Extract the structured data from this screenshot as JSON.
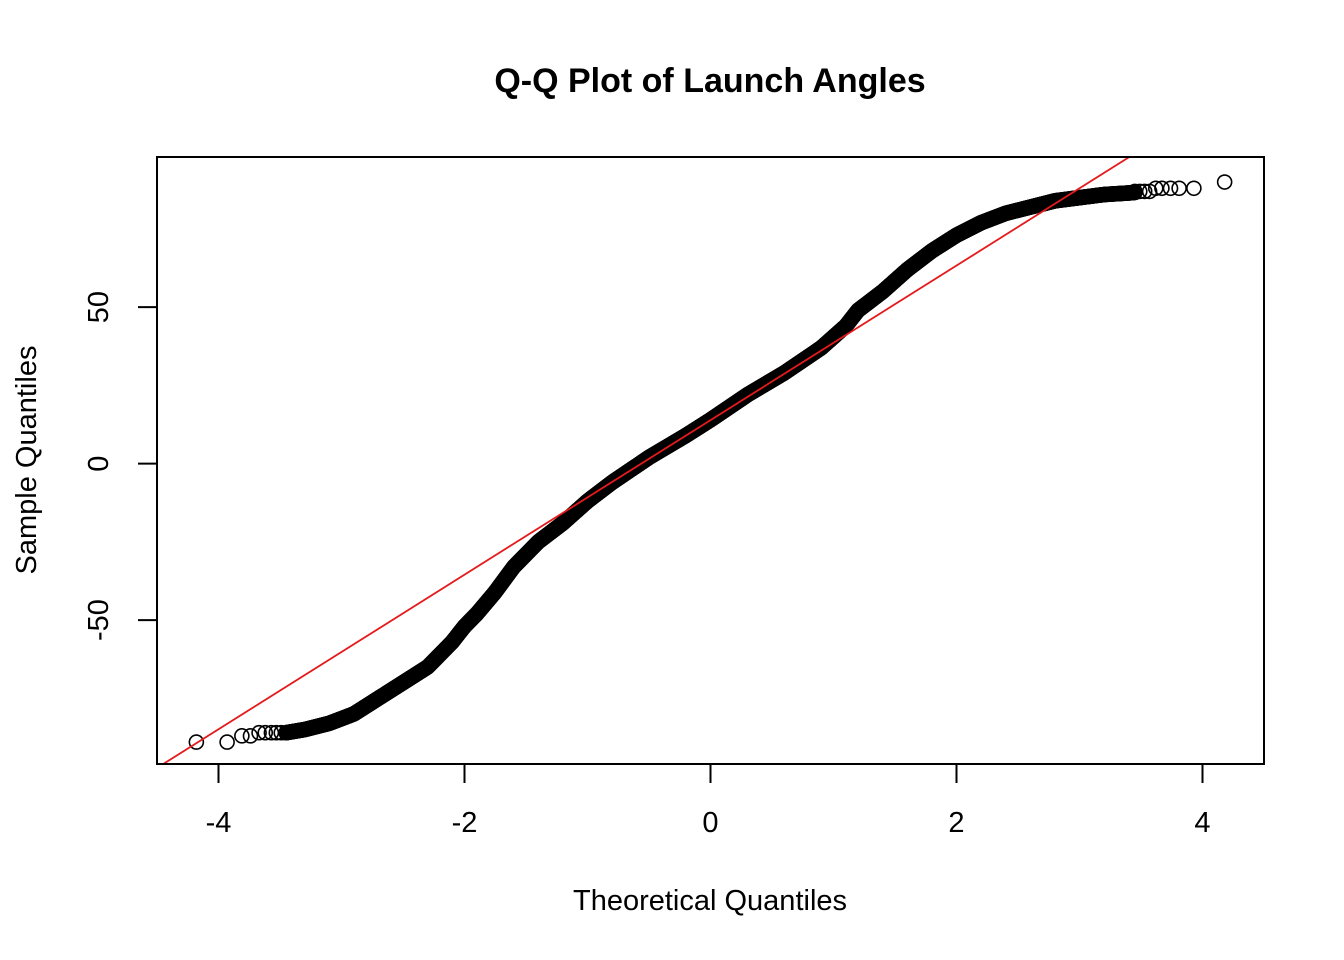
{
  "chart_data": {
    "type": "scatter",
    "title": "Q-Q Plot of Launch Angles",
    "xlabel": "Theoretical Quantiles",
    "ylabel": "Sample Quantiles",
    "xlim": [
      -4.5,
      4.5
    ],
    "ylim": [
      -96,
      98
    ],
    "x_ticks": [
      -4,
      -2,
      0,
      2,
      4
    ],
    "x_tick_labels": [
      "-4",
      "-2",
      "0",
      "2",
      "4"
    ],
    "y_ticks": [
      -50,
      0,
      50
    ],
    "y_tick_labels": [
      "-50",
      "0",
      "50"
    ],
    "grid": false,
    "legend": "none",
    "reference_line": {
      "intercept": 13.9,
      "slope": 24.7,
      "color": "#e41a1c"
    },
    "point_color": "#000000",
    "series": [
      {
        "quantile_curve": [
          [
            -4.18,
            -89
          ],
          [
            -3.93,
            -89
          ],
          [
            -3.78,
            -87
          ],
          [
            -3.7,
            -87
          ],
          [
            -3.6,
            -86
          ],
          [
            -3.45,
            -86
          ],
          [
            -3.3,
            -85
          ],
          [
            -3.1,
            -83
          ],
          [
            -2.9,
            -80
          ],
          [
            -2.7,
            -75
          ],
          [
            -2.5,
            -70
          ],
          [
            -2.3,
            -65
          ],
          [
            -2.1,
            -57
          ],
          [
            -2.0,
            -52
          ],
          [
            -1.9,
            -48
          ],
          [
            -1.75,
            -41
          ],
          [
            -1.6,
            -33
          ],
          [
            -1.5,
            -29
          ],
          [
            -1.4,
            -25
          ],
          [
            -1.2,
            -19
          ],
          [
            -1.0,
            -12
          ],
          [
            -0.8,
            -6
          ],
          [
            -0.5,
            2
          ],
          [
            -0.2,
            9
          ],
          [
            0.0,
            14
          ],
          [
            0.3,
            22
          ],
          [
            0.6,
            29
          ],
          [
            0.9,
            37
          ],
          [
            1.1,
            44
          ],
          [
            1.2,
            49
          ],
          [
            1.4,
            55
          ],
          [
            1.6,
            62
          ],
          [
            1.8,
            68
          ],
          [
            2.0,
            73
          ],
          [
            2.2,
            77
          ],
          [
            2.4,
            80
          ],
          [
            2.6,
            82
          ],
          [
            2.8,
            84
          ],
          [
            3.0,
            85
          ],
          [
            3.2,
            86
          ],
          [
            3.4,
            86.5
          ],
          [
            3.55,
            87
          ],
          [
            3.7,
            87
          ],
          [
            3.8,
            87
          ],
          [
            3.93,
            88
          ],
          [
            4.18,
            90
          ]
        ],
        "tail_points": [
          [
            -4.18,
            -89
          ],
          [
            -3.93,
            -89
          ],
          [
            -3.81,
            -87
          ],
          [
            -3.74,
            -87
          ],
          [
            -3.67,
            -86
          ],
          [
            -3.62,
            -86
          ],
          [
            -3.57,
            -86
          ],
          [
            -3.53,
            -86
          ],
          [
            -3.49,
            -86
          ],
          [
            -3.45,
            -86
          ],
          [
            3.45,
            87
          ],
          [
            3.49,
            87
          ],
          [
            3.53,
            87
          ],
          [
            3.57,
            87
          ],
          [
            3.62,
            88
          ],
          [
            3.67,
            88
          ],
          [
            3.74,
            88
          ],
          [
            3.81,
            88
          ],
          [
            3.93,
            88
          ],
          [
            4.18,
            90
          ]
        ]
      }
    ]
  }
}
